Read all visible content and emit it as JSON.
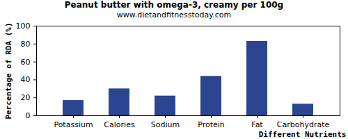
{
  "chart_data": {
    "type": "bar",
    "title": "Peanut butter with omega-3, creamy per 100g",
    "subtitle": "www.dietandfitnesstoday.com",
    "x_label": "Different Nutrients",
    "y_label": "Percentage of RDA (%)",
    "categories": [
      "Potassium",
      "Calories",
      "Sodium",
      "Protein",
      "Fat",
      "Carbohydrate"
    ],
    "values": [
      17,
      30,
      22,
      44,
      83,
      13
    ],
    "color": "#2b4590",
    "ylim": [
      0,
      100
    ],
    "yticks": [
      0,
      20,
      40,
      60,
      80,
      100
    ],
    "grid": false
  }
}
